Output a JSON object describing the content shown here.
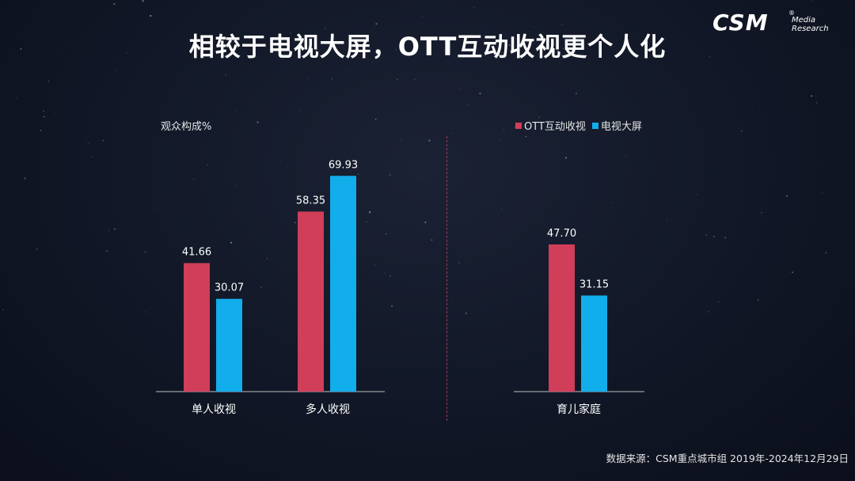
{
  "title": "相较于电视大屏，OTT互动收视更个人化",
  "logo": {
    "brand": "CSM",
    "registered": "®",
    "line1": "Media",
    "line2": "Research"
  },
  "source": "数据来源：CSM重点城市组 2019年-2024年12月29日",
  "colors": {
    "ott": "#d03e5a",
    "tv": "#12adeb",
    "axis": "#bfbfbf"
  },
  "chart_data": [
    {
      "type": "bar",
      "ylabel": "观众构成%",
      "categories": [
        "单人收视",
        "多人收视"
      ],
      "series": [
        {
          "name": "OTT互动收视",
          "values": [
            41.66,
            58.35
          ]
        },
        {
          "name": "电视大屏",
          "values": [
            30.07,
            69.93
          ]
        }
      ],
      "value_labels": [
        [
          "41.66",
          "58.35"
        ],
        [
          "30.07",
          "69.93"
        ]
      ],
      "ylim": [
        0,
        70
      ]
    },
    {
      "type": "bar",
      "categories": [
        "育儿家庭"
      ],
      "series": [
        {
          "name": "OTT互动收视",
          "values": [
            47.7
          ]
        },
        {
          "name": "电视大屏",
          "values": [
            31.15
          ]
        }
      ],
      "value_labels": [
        [
          "47.70"
        ],
        [
          "31.15"
        ]
      ],
      "ylim": [
        0,
        70
      ]
    }
  ]
}
